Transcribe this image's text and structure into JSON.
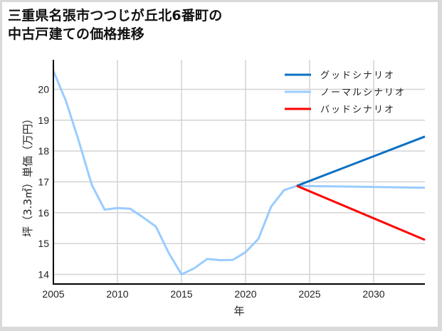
{
  "title": {
    "line1": "三重県名張市つつじが丘北6番町の",
    "line2": "中古戸建ての価格推移"
  },
  "colors": {
    "good": "#0a70c4",
    "normal": "#99ccff",
    "bad": "#ff0000",
    "grid": "#d3d3d3",
    "axis": "#000000"
  },
  "chart_data": {
    "type": "line",
    "title": "三重県名張市つつじが丘北6番町の中古戸建ての価格推移",
    "xlabel": "年",
    "ylabel": "坪（3.3㎡）単価（万円）",
    "xlim": [
      2005,
      2034
    ],
    "ylim": [
      13.7,
      20.9
    ],
    "x_ticks": [
      2005,
      2010,
      2015,
      2020,
      2025,
      2030
    ],
    "y_ticks": [
      14,
      15,
      16,
      17,
      18,
      19,
      20
    ],
    "grid": true,
    "legend_position": "upper right",
    "series": [
      {
        "name": "グッドシナリオ",
        "color": "#0a70c4",
        "x": [
          2024,
          2034
        ],
        "values": [
          16.87,
          18.47
        ]
      },
      {
        "name": "ノーマルシナリオ",
        "color": "#99ccff",
        "x": [
          2005,
          2006,
          2007,
          2008,
          2009,
          2010,
          2011,
          2012,
          2013,
          2014,
          2015,
          2016,
          2017,
          2018,
          2019,
          2020,
          2021,
          2022,
          2023,
          2024,
          2034
        ],
        "values": [
          20.6,
          19.6,
          18.3,
          16.9,
          16.1,
          16.15,
          16.13,
          15.85,
          15.55,
          14.7,
          14.0,
          14.2,
          14.5,
          14.46,
          14.47,
          14.72,
          15.15,
          16.2,
          16.73,
          16.87,
          16.81
        ]
      },
      {
        "name": "バッドシナリオ",
        "color": "#ff0000",
        "x": [
          2024,
          2034
        ],
        "values": [
          16.87,
          15.12
        ]
      }
    ]
  }
}
